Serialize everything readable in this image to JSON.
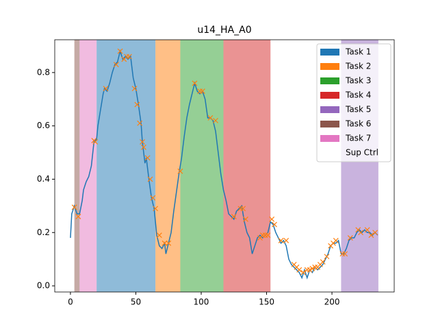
{
  "chart_data": {
    "type": "line",
    "title": "u14_HA_A0",
    "xlim": [
      -12,
      247.6
    ],
    "ylim": [
      -0.023,
      0.923
    ],
    "xticks": [
      0,
      50,
      100,
      150,
      200
    ],
    "yticks": [
      {
        "value": 0,
        "label": "0.0"
      },
      0.2,
      0.4,
      0.6,
      0.8
    ],
    "span_alpha": 0.5,
    "legend_position": "upper right",
    "legend": [
      {
        "name": "Task 1",
        "color": "#1f77b4",
        "spans": [
          [
            20,
            65
          ]
        ]
      },
      {
        "name": "Task 2",
        "color": "#ff7f0e",
        "spans": [
          [
            65,
            84
          ]
        ]
      },
      {
        "name": "Task 3",
        "color": "#2ca02c",
        "spans": [
          [
            84,
            117
          ]
        ]
      },
      {
        "name": "Task 4",
        "color": "#d62728",
        "spans": [
          [
            117,
            153
          ]
        ]
      },
      {
        "name": "Task 5",
        "color": "#9467bd",
        "spans": [
          [
            207,
            235.5
          ]
        ]
      },
      {
        "name": "Task 6",
        "color": "#8c564b",
        "spans": [
          [
            3,
            7
          ]
        ]
      },
      {
        "name": "Task 7",
        "color": "#e377c2",
        "spans": [
          [
            7,
            20
          ]
        ]
      },
      {
        "name": "Sup Ctrl",
        "color": "#ffffff",
        "spans": []
      }
    ],
    "line": {
      "color": "#1f77b4",
      "x": [
        0,
        1,
        3,
        5,
        7,
        9,
        10,
        12,
        14,
        16,
        18,
        20,
        21,
        23,
        25,
        26,
        28,
        30,
        32,
        34,
        36,
        38,
        40,
        42,
        44,
        46,
        48,
        50,
        52,
        54,
        55,
        56,
        57,
        58,
        60,
        62,
        64,
        66,
        68,
        70,
        72,
        73,
        75,
        77,
        79,
        81,
        83,
        85,
        87,
        89,
        91,
        93,
        95,
        97,
        99,
        101,
        103,
        105,
        107,
        109,
        111,
        113,
        115,
        117,
        119,
        121,
        123,
        125,
        127,
        129,
        131,
        133,
        135,
        137,
        139,
        141,
        143,
        145,
        147,
        149,
        151,
        153,
        155,
        157,
        159,
        161,
        163,
        165,
        167,
        169,
        171,
        173,
        175,
        177,
        179,
        181,
        183,
        185,
        187,
        189,
        191,
        193,
        195,
        197,
        199,
        201,
        203,
        205,
        207,
        209,
        211,
        213,
        215,
        217,
        219,
        221,
        223,
        225,
        227,
        229,
        231,
        233,
        235
      ],
      "values": [
        0.18,
        0.27,
        0.3,
        0.27,
        0.27,
        0.32,
        0.36,
        0.39,
        0.41,
        0.45,
        0.54,
        0.55,
        0.6,
        0.66,
        0.72,
        0.74,
        0.73,
        0.76,
        0.8,
        0.83,
        0.84,
        0.88,
        0.85,
        0.86,
        0.85,
        0.86,
        0.78,
        0.74,
        0.68,
        0.61,
        0.54,
        0.5,
        0.46,
        0.48,
        0.4,
        0.33,
        0.29,
        0.19,
        0.15,
        0.14,
        0.16,
        0.12,
        0.16,
        0.2,
        0.28,
        0.35,
        0.42,
        0.48,
        0.56,
        0.63,
        0.68,
        0.72,
        0.76,
        0.73,
        0.72,
        0.73,
        0.7,
        0.63,
        0.63,
        0.62,
        0.58,
        0.5,
        0.42,
        0.36,
        0.32,
        0.27,
        0.26,
        0.25,
        0.28,
        0.29,
        0.3,
        0.24,
        0.2,
        0.18,
        0.12,
        0.15,
        0.18,
        0.19,
        0.18,
        0.19,
        0.2,
        0.24,
        0.23,
        0.2,
        0.18,
        0.16,
        0.17,
        0.15,
        0.1,
        0.08,
        0.07,
        0.06,
        0.05,
        0.03,
        0.06,
        0.03,
        0.06,
        0.05,
        0.07,
        0.06,
        0.07,
        0.08,
        0.1,
        0.12,
        0.15,
        0.16,
        0.16,
        0.17,
        0.12,
        0.12,
        0.14,
        0.17,
        0.18,
        0.18,
        0.2,
        0.21,
        0.2,
        0.21,
        0.2,
        0.2,
        0.19,
        0.2,
        0.19
      ]
    },
    "markers": {
      "color": "#ff7f0e",
      "x": [
        3,
        6,
        18,
        19,
        27,
        35,
        38,
        41,
        43,
        45,
        49,
        51,
        53,
        55,
        56,
        59,
        61,
        63,
        65,
        68,
        72,
        75,
        84,
        95,
        99,
        101,
        107,
        111,
        125,
        130,
        132,
        134,
        145,
        147,
        149,
        151,
        154,
        156,
        161,
        165,
        171,
        173,
        175,
        178,
        181,
        183,
        185,
        187,
        189,
        191,
        193,
        196,
        199,
        201,
        203,
        208,
        210,
        214,
        220,
        222,
        227,
        230,
        233
      ],
      "values": [
        0.295,
        0.26,
        0.545,
        0.54,
        0.74,
        0.83,
        0.88,
        0.85,
        0.86,
        0.86,
        0.74,
        0.68,
        0.61,
        0.54,
        0.52,
        0.48,
        0.4,
        0.33,
        0.29,
        0.19,
        0.16,
        0.16,
        0.43,
        0.76,
        0.73,
        0.73,
        0.63,
        0.62,
        0.26,
        0.29,
        0.29,
        0.25,
        0.18,
        0.19,
        0.19,
        0.19,
        0.25,
        0.23,
        0.17,
        0.17,
        0.08,
        0.07,
        0.06,
        0.05,
        0.06,
        0.06,
        0.065,
        0.07,
        0.07,
        0.08,
        0.09,
        0.11,
        0.15,
        0.16,
        0.17,
        0.12,
        0.12,
        0.18,
        0.21,
        0.2,
        0.21,
        0.19,
        0.2
      ]
    }
  }
}
